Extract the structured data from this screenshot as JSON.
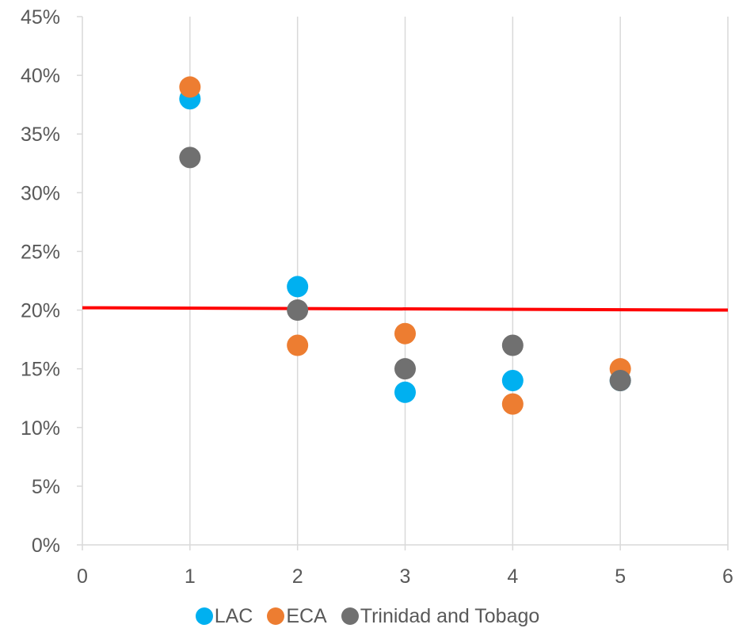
{
  "chart_data": {
    "type": "scatter",
    "title": "",
    "xlabel": "",
    "ylabel": "",
    "xlim": [
      0,
      6
    ],
    "ylim": [
      0,
      0.45
    ],
    "x_ticks": [
      "0",
      "1",
      "2",
      "3",
      "4",
      "5",
      "6"
    ],
    "y_ticks": [
      "0%",
      "5%",
      "10%",
      "15%",
      "20%",
      "25%",
      "30%",
      "35%",
      "40%",
      "45%"
    ],
    "grid": "vertical",
    "legend_position": "bottom",
    "series": [
      {
        "name": "LAC",
        "color": "#00B0F0",
        "x": [
          1,
          2,
          3,
          4,
          5
        ],
        "y": [
          0.38,
          0.22,
          0.13,
          0.14,
          0.14
        ]
      },
      {
        "name": "ECA",
        "color": "#ED7D31",
        "x": [
          1,
          2,
          3,
          4,
          5
        ],
        "y": [
          0.39,
          0.17,
          0.18,
          0.12,
          0.15
        ]
      },
      {
        "name": "Trinidad and Tobago",
        "color": "#707070",
        "x": [
          1,
          2,
          3,
          4,
          5
        ],
        "y": [
          0.33,
          0.2,
          0.15,
          0.17,
          0.14
        ]
      }
    ],
    "reference_line": {
      "color": "#FF0000",
      "x": [
        0,
        6
      ],
      "y": [
        0.202,
        0.2
      ]
    }
  }
}
